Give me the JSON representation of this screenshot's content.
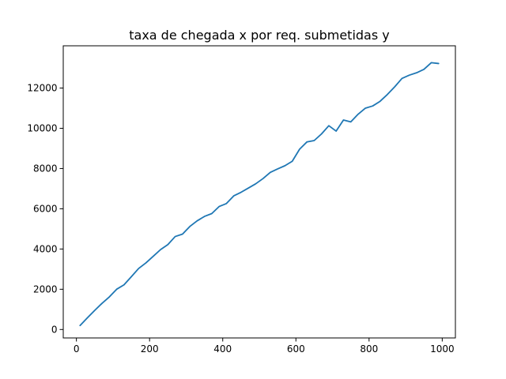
{
  "chart_data": {
    "type": "line",
    "title": "taxa de chegada x por req. submetidas y",
    "xlabel": "",
    "ylabel": "",
    "xlim": [
      -36,
      1036
    ],
    "ylim": [
      -420,
      14100
    ],
    "xticks": [
      0,
      200,
      400,
      600,
      800,
      1000
    ],
    "yticks": [
      0,
      2000,
      4000,
      6000,
      8000,
      10000,
      12000
    ],
    "grid": false,
    "legend": "none",
    "series": [
      {
        "color": "#1f77b4",
        "x": [
          10,
          30,
          50,
          70,
          90,
          110,
          130,
          150,
          170,
          190,
          210,
          230,
          250,
          270,
          290,
          310,
          330,
          350,
          370,
          390,
          410,
          430,
          450,
          470,
          490,
          510,
          530,
          550,
          570,
          590,
          610,
          630,
          650,
          670,
          690,
          710,
          730,
          750,
          770,
          790,
          810,
          830,
          850,
          870,
          890,
          910,
          930,
          950,
          970,
          990
        ],
        "y": [
          200,
          580,
          950,
          1300,
          1620,
          2000,
          2220,
          2620,
          3030,
          3310,
          3640,
          3970,
          4220,
          4620,
          4740,
          5120,
          5400,
          5620,
          5760,
          6110,
          6260,
          6640,
          6820,
          7030,
          7240,
          7500,
          7810,
          7980,
          8140,
          8360,
          8960,
          9320,
          9390,
          9720,
          10130,
          9860,
          10410,
          10320,
          10700,
          11000,
          11110,
          11340,
          11680,
          12060,
          12480,
          12640,
          12760,
          12930,
          13260,
          13220
        ]
      }
    ]
  }
}
